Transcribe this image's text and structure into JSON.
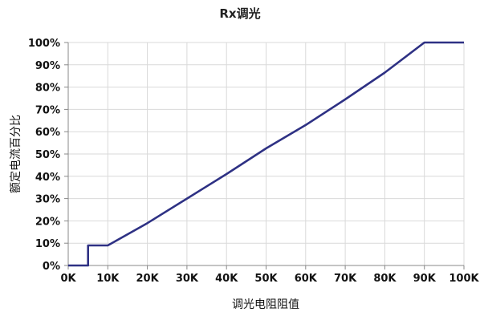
{
  "chart_data": {
    "type": "line",
    "title": "Rx调光",
    "xlabel": "调光电阻阻值",
    "ylabel": "额定电流百分比",
    "xlim": [
      0,
      100
    ],
    "ylim": [
      0,
      100
    ],
    "x_ticks": [
      "0K",
      "10K",
      "20K",
      "30K",
      "40K",
      "50K",
      "60K",
      "70K",
      "80K",
      "90K",
      "100K"
    ],
    "y_ticks": [
      "0%",
      "10%",
      "20%",
      "30%",
      "40%",
      "50%",
      "60%",
      "70%",
      "80%",
      "90%",
      "100%"
    ],
    "grid": true,
    "legend": "none",
    "series": [
      {
        "color": "#2e3184",
        "x": [
          0,
          5,
          5,
          10,
          20,
          30,
          40,
          50,
          60,
          70,
          80,
          90,
          100
        ],
        "y": [
          0,
          0,
          9,
          9,
          19,
          30,
          41,
          52.5,
          63,
          74.5,
          86.5,
          100,
          100
        ]
      }
    ]
  }
}
